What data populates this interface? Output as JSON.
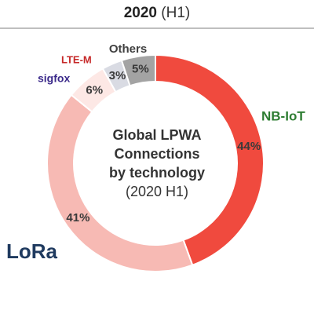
{
  "chart_data": {
    "type": "donut",
    "title": "2020",
    "subtitle": "(H1)",
    "center_label": [
      "Global LPWA",
      "Connections",
      "by technology",
      "(2020 H1)"
    ],
    "categories": [
      "NB-IoT",
      "LoRa",
      "sigfox",
      "LTE-M",
      "Others"
    ],
    "values": [
      44,
      41,
      6,
      3,
      5
    ],
    "value_labels": [
      "44%",
      "41%",
      "6%",
      "3%",
      "5%"
    ],
    "colors": [
      "#f04a3e",
      "#f7bab4",
      "#fde8e5",
      "#d9dbe3",
      "#a3a3a3"
    ],
    "category_colors": [
      "#2e7d32",
      "#1f3a5f",
      "#3b2a8a",
      "#c62828",
      "#404040"
    ]
  }
}
